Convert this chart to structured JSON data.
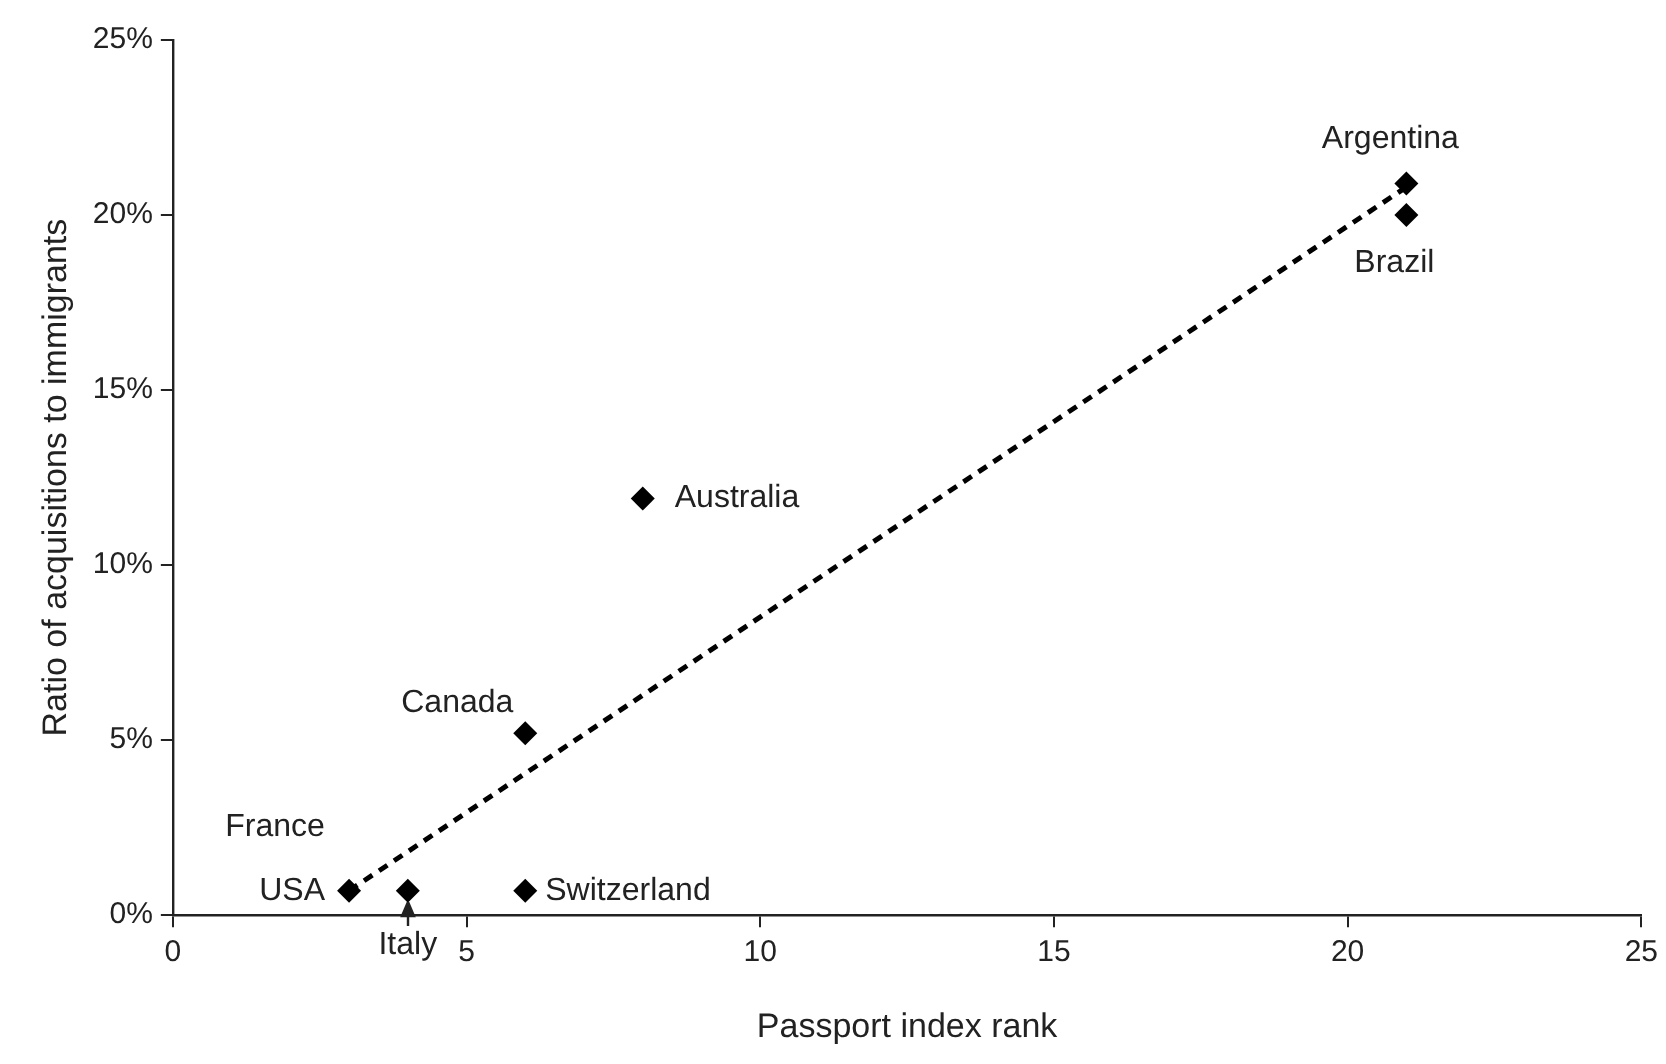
{
  "chart_data": {
    "type": "scatter",
    "xlabel": "Passport index rank",
    "ylabel": "Ratio of acquisitions to immigrants",
    "series": [
      {
        "color": "#000000",
        "marker": "diamond",
        "x": [
          3,
          4,
          6,
          6,
          8,
          21,
          21
        ],
        "values": [
          0.7,
          0.7,
          0.7,
          5.2,
          11.9,
          20.9,
          20.0
        ]
      },
      {
        "type": "line",
        "color": "#000000",
        "marker": "none",
        "line_style": "dashed",
        "x": [
          3,
          21
        ],
        "values": [
          0.7,
          20.8
        ]
      }
    ],
    "xlim": [
      0,
      25
    ],
    "xticks": [
      0,
      5,
      10,
      15,
      20,
      25
    ],
    "ylim": [
      0,
      25
    ],
    "yticks": [
      {
        "value": 0,
        "label": "0%"
      },
      {
        "value": 5,
        "label": "5%"
      },
      {
        "value": 10,
        "label": "10%"
      },
      {
        "value": 15,
        "label": "15%"
      },
      {
        "value": 20,
        "label": "20%"
      },
      {
        "value": 25,
        "label": "25%"
      }
    ],
    "grid": false,
    "legend": false,
    "annotations": [
      {
        "text": "Argentina",
        "x": 21,
        "y": 20.9
      },
      {
        "text": "Brazil",
        "x": 21,
        "y": 20.0
      },
      {
        "text": "Australia",
        "x": 8,
        "y": 11.9
      },
      {
        "text": "Canada",
        "x": 6,
        "y": 5.2
      },
      {
        "text": "France",
        "x": 3,
        "y": 0.7
      },
      {
        "text": "USA",
        "x": 3,
        "y": 0.7
      },
      {
        "text": "Switzerland",
        "x": 6,
        "y": 0.7
      },
      {
        "text": "Italy",
        "x": 4,
        "y": 0.7
      }
    ]
  }
}
